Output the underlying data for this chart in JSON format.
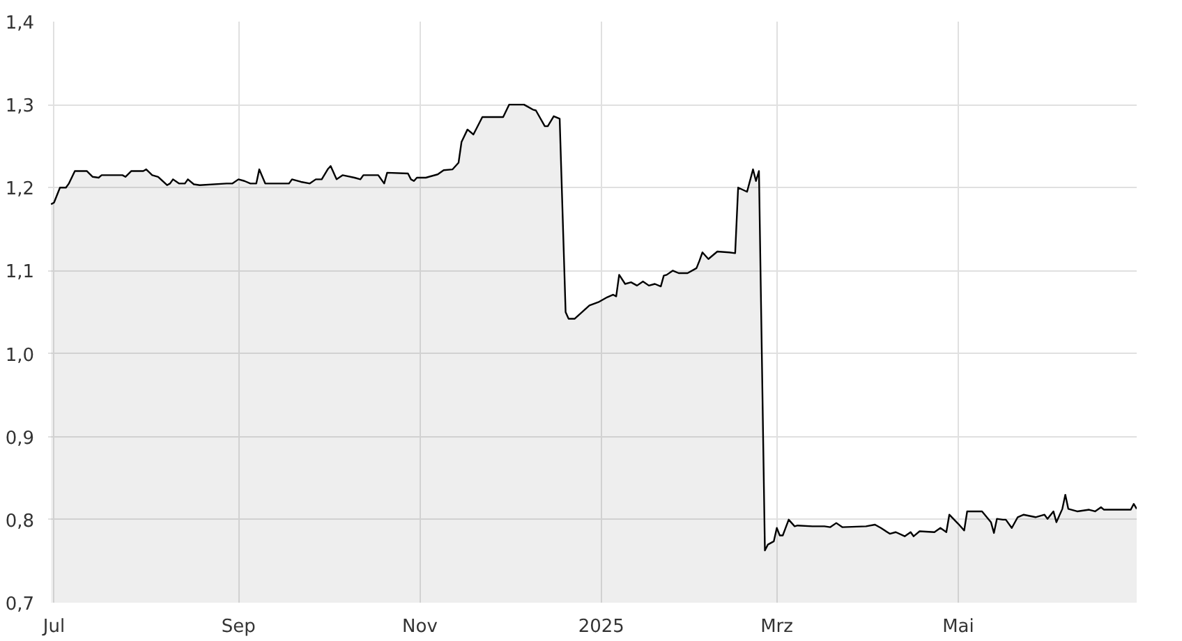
{
  "chart_data": {
    "type": "area",
    "grid": true,
    "xlim": [
      "2024-06-29",
      "2025-06-30"
    ],
    "ylim": [
      0.7,
      1.4
    ],
    "xticks": [
      {
        "value": "2024-07-01",
        "label": "Jul"
      },
      {
        "value": "2024-09-01",
        "label": "Sep"
      },
      {
        "value": "2024-11-01",
        "label": "Nov"
      },
      {
        "value": "2025-01-01",
        "label": "2025"
      },
      {
        "value": "2025-03-01",
        "label": "Mrz"
      },
      {
        "value": "2025-05-01",
        "label": "Mai"
      }
    ],
    "yticks": [
      {
        "value": 0.7,
        "label": "0,7"
      },
      {
        "value": 0.8,
        "label": "0,8"
      },
      {
        "value": 0.9,
        "label": "0,9"
      },
      {
        "value": 1.0,
        "label": "1,0"
      },
      {
        "value": 1.1,
        "label": "1,1"
      },
      {
        "value": 1.2,
        "label": "1,2"
      },
      {
        "value": 1.3,
        "label": "1,3"
      },
      {
        "value": 1.4,
        "label": "1,4"
      }
    ],
    "x": [
      "2024-06-30",
      "2024-07-01",
      "2024-07-03",
      "2024-07-05",
      "2024-07-06",
      "2024-07-08",
      "2024-07-12",
      "2024-07-14",
      "2024-07-16",
      "2024-07-17",
      "2024-07-24",
      "2024-07-25",
      "2024-07-27",
      "2024-07-31",
      "2024-08-01",
      "2024-08-03",
      "2024-08-05",
      "2024-08-08",
      "2024-08-09",
      "2024-08-10",
      "2024-08-12",
      "2024-08-14",
      "2024-08-15",
      "2024-08-17",
      "2024-08-19",
      "2024-08-28",
      "2024-08-30",
      "2024-09-01",
      "2024-09-03",
      "2024-09-05",
      "2024-09-07",
      "2024-09-08",
      "2024-09-10",
      "2024-09-18",
      "2024-09-19",
      "2024-09-22",
      "2024-09-25",
      "2024-09-27",
      "2024-09-29",
      "2024-10-01",
      "2024-10-02",
      "2024-10-04",
      "2024-10-06",
      "2024-10-10",
      "2024-10-12",
      "2024-10-13",
      "2024-10-18",
      "2024-10-20",
      "2024-10-21",
      "2024-10-28",
      "2024-10-29",
      "2024-10-30",
      "2024-10-31",
      "2024-11-03",
      "2024-11-07",
      "2024-11-09",
      "2024-11-12",
      "2024-11-14",
      "2024-11-15",
      "2024-11-17",
      "2024-11-19",
      "2024-11-22",
      "2024-11-29",
      "2024-12-01",
      "2024-12-06",
      "2024-12-09",
      "2024-12-10",
      "2024-12-13",
      "2024-12-14",
      "2024-12-16",
      "2024-12-18",
      "2024-12-20",
      "2024-12-21",
      "2024-12-23",
      "2024-12-28",
      "2024-12-31",
      "2025-01-03",
      "2025-01-05",
      "2025-01-06",
      "2025-01-07",
      "2025-01-09",
      "2025-01-11",
      "2025-01-13",
      "2025-01-15",
      "2025-01-17",
      "2025-01-19",
      "2025-01-21",
      "2025-01-22",
      "2025-01-23",
      "2025-01-25",
      "2025-01-27",
      "2025-01-30",
      "2025-02-02",
      "2025-02-03",
      "2025-02-04",
      "2025-02-06",
      "2025-02-09",
      "2025-02-13",
      "2025-02-15",
      "2025-02-16",
      "2025-02-19",
      "2025-02-21",
      "2025-02-22",
      "2025-02-23",
      "2025-02-25",
      "2025-02-26",
      "2025-02-28",
      "2025-03-01",
      "2025-03-02",
      "2025-03-03",
      "2025-03-05",
      "2025-03-07",
      "2025-03-08",
      "2025-03-13",
      "2025-03-17",
      "2025-03-19",
      "2025-03-21",
      "2025-03-23",
      "2025-03-31",
      "2025-04-03",
      "2025-04-05",
      "2025-04-08",
      "2025-04-10",
      "2025-04-13",
      "2025-04-15",
      "2025-04-16",
      "2025-04-18",
      "2025-04-23",
      "2025-04-25",
      "2025-04-27",
      "2025-04-28",
      "2025-05-01",
      "2025-05-03",
      "2025-05-04",
      "2025-05-09",
      "2025-05-12",
      "2025-05-13",
      "2025-05-14",
      "2025-05-16",
      "2025-05-17",
      "2025-05-19",
      "2025-05-21",
      "2025-05-23",
      "2025-05-27",
      "2025-05-30",
      "2025-05-31",
      "2025-06-02",
      "2025-06-03",
      "2025-06-05",
      "2025-06-06",
      "2025-06-07",
      "2025-06-10",
      "2025-06-14",
      "2025-06-16",
      "2025-06-18",
      "2025-06-19",
      "2025-06-28",
      "2025-06-29",
      "2025-06-30"
    ],
    "series": [
      {
        "color": "#000000",
        "values": [
          1.18,
          1.182,
          1.2,
          1.2,
          1.205,
          1.22,
          1.22,
          1.213,
          1.212,
          1.215,
          1.215,
          1.213,
          1.22,
          1.22,
          1.222,
          1.215,
          1.213,
          1.203,
          1.205,
          1.21,
          1.205,
          1.205,
          1.21,
          1.204,
          1.203,
          1.205,
          1.205,
          1.21,
          1.208,
          1.205,
          1.205,
          1.222,
          1.205,
          1.205,
          1.21,
          1.207,
          1.205,
          1.21,
          1.21,
          1.222,
          1.226,
          1.21,
          1.215,
          1.212,
          1.21,
          1.215,
          1.215,
          1.205,
          1.218,
          1.217,
          1.21,
          1.208,
          1.212,
          1.212,
          1.216,
          1.221,
          1.222,
          1.23,
          1.255,
          1.27,
          1.264,
          1.285,
          1.285,
          1.3,
          1.3,
          1.294,
          1.293,
          1.274,
          1.274,
          1.286,
          1.283,
          1.05,
          1.042,
          1.042,
          1.058,
          1.062,
          1.068,
          1.071,
          1.069,
          1.095,
          1.084,
          1.086,
          1.082,
          1.087,
          1.082,
          1.084,
          1.081,
          1.094,
          1.095,
          1.1,
          1.097,
          1.097,
          1.103,
          1.112,
          1.122,
          1.114,
          1.123,
          1.122,
          1.121,
          1.2,
          1.195,
          1.222,
          1.208,
          1.22,
          0.763,
          0.77,
          0.774,
          0.79,
          0.781,
          0.781,
          0.8,
          0.792,
          0.793,
          0.792,
          0.792,
          0.791,
          0.796,
          0.791,
          0.792,
          0.794,
          0.79,
          0.783,
          0.785,
          0.78,
          0.785,
          0.78,
          0.786,
          0.785,
          0.79,
          0.785,
          0.806,
          0.795,
          0.787,
          0.81,
          0.81,
          0.797,
          0.784,
          0.801,
          0.8,
          0.8,
          0.79,
          0.803,
          0.806,
          0.803,
          0.806,
          0.801,
          0.81,
          0.797,
          0.813,
          0.83,
          0.813,
          0.81,
          0.812,
          0.81,
          0.815,
          0.812,
          0.812,
          0.819,
          0.813
        ]
      }
    ]
  }
}
